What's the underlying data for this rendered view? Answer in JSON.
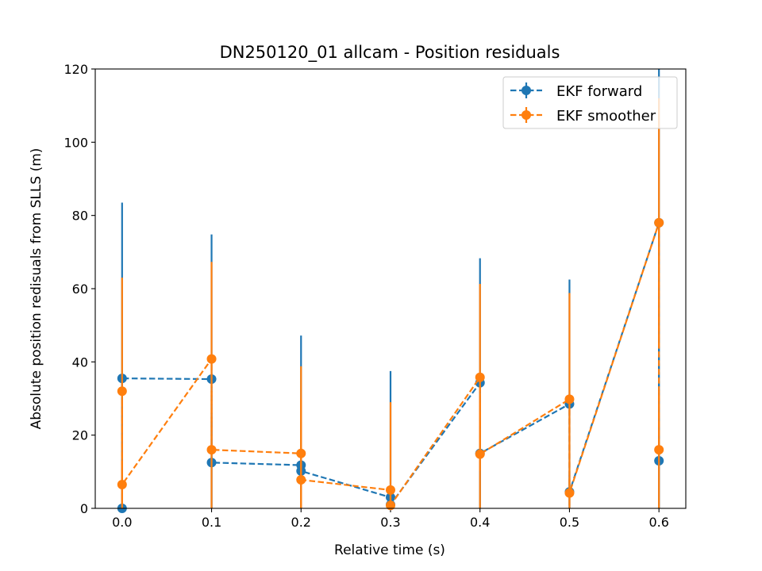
{
  "chart_data": {
    "type": "line",
    "title": "DN250120_01 allcam - Position residuals",
    "xlabel": "Relative time (s)",
    "ylabel": "Absolute position redisuals from SLLS (m)",
    "xlim": [
      -0.03,
      0.63
    ],
    "ylim": [
      0,
      120
    ],
    "x_ticks": [
      0.0,
      0.1,
      0.2,
      0.3,
      0.4,
      0.5,
      0.6
    ],
    "x_tick_labels": [
      "0.0",
      "0.1",
      "0.2",
      "0.3",
      "0.4",
      "0.5",
      "0.6"
    ],
    "y_ticks": [
      0,
      20,
      40,
      60,
      80,
      100,
      120
    ],
    "y_tick_labels": [
      "0",
      "20",
      "40",
      "60",
      "80",
      "100",
      "120"
    ],
    "grid": false,
    "legend_position": "top-right",
    "series": [
      {
        "name": "EKF forward",
        "color": "#1f77b4",
        "points": [
          {
            "x": 0.0,
            "y": 0.0,
            "yerr": 0
          },
          {
            "x": 0.0,
            "y": 35.5,
            "yerr": 48
          },
          {
            "x": 0.1,
            "y": 35.3,
            "yerr": 39.5
          },
          {
            "x": 0.1,
            "y": 12.5,
            "yerr": 12.5
          },
          {
            "x": 0.2,
            "y": 11.8,
            "yerr": 11.8
          },
          {
            "x": 0.2,
            "y": 10.2,
            "yerr": 37
          },
          {
            "x": 0.3,
            "y": 3.0,
            "yerr": 34.5
          },
          {
            "x": 0.3,
            "y": 1.0,
            "yerr": 1
          },
          {
            "x": 0.4,
            "y": 34.3,
            "yerr": 34
          },
          {
            "x": 0.4,
            "y": 15.0,
            "yerr": 15
          },
          {
            "x": 0.5,
            "y": 28.5,
            "yerr": 34
          },
          {
            "x": 0.5,
            "y": 4.5,
            "yerr": 4.5
          },
          {
            "x": 0.6,
            "y": 78.0,
            "yerr": 78
          },
          {
            "x": 0.6,
            "y": 13.0,
            "yerr": 13
          }
        ]
      },
      {
        "name": "EKF smoother",
        "color": "#ff7f0e",
        "points": [
          {
            "x": 0.0,
            "y": 32.0,
            "yerr": 31
          },
          {
            "x": 0.0,
            "y": 6.5,
            "yerr": 6.5
          },
          {
            "x": 0.1,
            "y": 40.8,
            "yerr": 26.5
          },
          {
            "x": 0.1,
            "y": 16.0,
            "yerr": 16
          },
          {
            "x": 0.2,
            "y": 15.0,
            "yerr": 15
          },
          {
            "x": 0.2,
            "y": 7.8,
            "yerr": 31
          },
          {
            "x": 0.3,
            "y": 5.0,
            "yerr": 24
          },
          {
            "x": 0.3,
            "y": 0.8,
            "yerr": 0.8
          },
          {
            "x": 0.4,
            "y": 35.8,
            "yerr": 25.5
          },
          {
            "x": 0.4,
            "y": 14.8,
            "yerr": 14.8
          },
          {
            "x": 0.5,
            "y": 29.8,
            "yerr": 29
          },
          {
            "x": 0.5,
            "y": 4.2,
            "yerr": 4.2
          },
          {
            "x": 0.6,
            "y": 78.0,
            "yerr": 34
          },
          {
            "x": 0.6,
            "y": 16.0,
            "yerr": 16
          }
        ]
      }
    ]
  }
}
